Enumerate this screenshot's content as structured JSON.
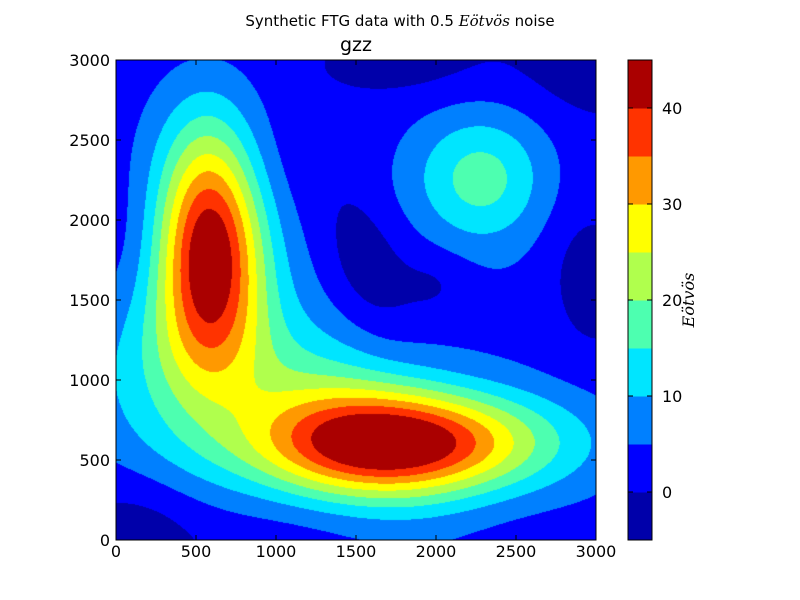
{
  "chart_data": {
    "type": "contour",
    "suptitle_prefix": "Synthetic FTG data with 0.5 ",
    "suptitle_unit": "Eötvös",
    "suptitle_suffix": " noise",
    "title": "gzz",
    "colorbar_label": "Eötvös",
    "xlim": [
      0,
      3000
    ],
    "ylim": [
      0,
      3000
    ],
    "xticks": [
      "0",
      "500",
      "1000",
      "1500",
      "2000",
      "2500",
      "3000"
    ],
    "yticks": [
      "0",
      "500",
      "1000",
      "1500",
      "2000",
      "2500",
      "3000"
    ],
    "colorbar_range": [
      -5,
      45
    ],
    "colorbar_ticks": [
      "0",
      "10",
      "20",
      "30",
      "40"
    ],
    "levels": [
      -5,
      0,
      5,
      10,
      15,
      20,
      25,
      30,
      35,
      40,
      45
    ],
    "level_colors": [
      "#0000aa",
      "#0000ff",
      "#0080ff",
      "#00e5ff",
      "#4dffb0",
      "#b0ff4d",
      "#ffff00",
      "#ff9900",
      "#ff3300",
      "#aa0000"
    ],
    "features": [
      {
        "type": "high",
        "center": [
          580,
          1850
        ],
        "peak": 42
      },
      {
        "type": "high",
        "center": [
          1800,
          600
        ],
        "peak": 42
      },
      {
        "type": "high",
        "center": [
          2300,
          2250
        ],
        "peak": 17
      },
      {
        "type": "low",
        "center": [
          1550,
          1800
        ],
        "value": 2
      }
    ]
  }
}
